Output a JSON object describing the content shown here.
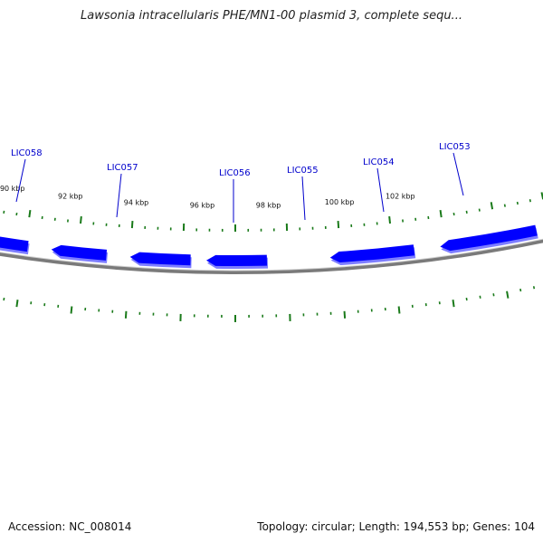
{
  "title": "Lawsonia intracellularis PHE/MN1-00 plasmid 3, complete sequ...",
  "footer": {
    "accession": "Accession: NC_008014",
    "summary": "Topology: circular; Length: 194,553 bp; Genes: 104"
  },
  "colors": {
    "gene": "#0000ff",
    "gene_shadow": "#7d7dff",
    "backbone": "#7a7a7a",
    "ticks": "#1a7a1a",
    "gene_label": "#0000cc"
  },
  "scale_labels": [
    "102 kbp",
    "100 kbp",
    "98 kbp",
    "96 kbp",
    "94 kbp",
    "92 kbp",
    "90 kbp"
  ],
  "genes": [
    "LIC058",
    "LIC057",
    "LIC056",
    "LIC055",
    "LIC054",
    "LIC053"
  ]
}
